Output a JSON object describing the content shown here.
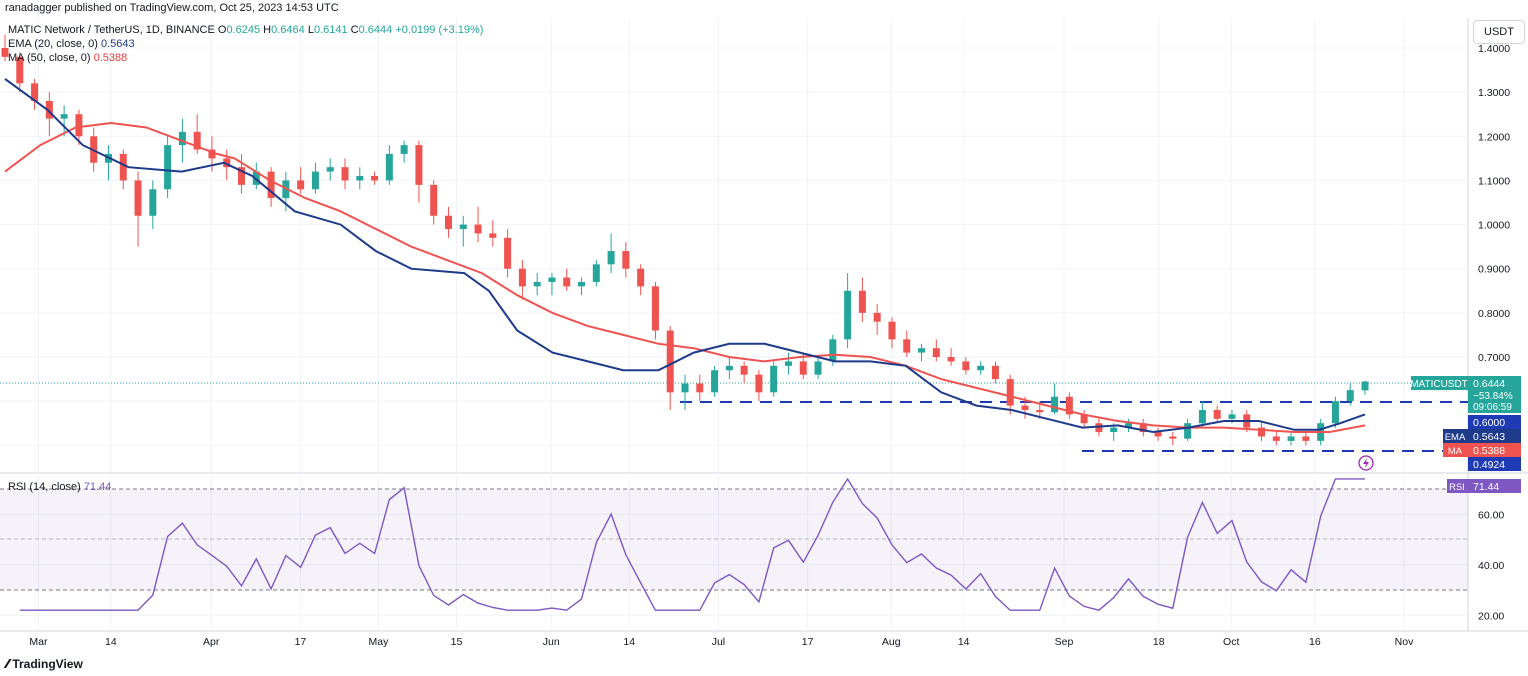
{
  "header": {
    "publisher": "ranadagger published on TradingView.com, Oct 25, 2023 14:53 UTC",
    "symbol_title": "MATIC Network / TetherUS, 1D, BINANCE",
    "ohlc": {
      "o_label": "O",
      "o": "0.6245",
      "h_label": "H",
      "h": "0.6464",
      "l_label": "L",
      "l": "0.6141",
      "c_label": "C",
      "c": "0.6444",
      "change": "+0.0199 (+3.19%)"
    },
    "ema_label": "EMA (20, close, 0)",
    "ema_value": "0.5643",
    "ma_label": "MA (50, close, 0)",
    "ma_value": "0.5388",
    "rsi_label": "RSI (14, close)",
    "rsi_value": "71.44"
  },
  "price_axis": {
    "unit": "USDT",
    "ticks": [
      "1.4000",
      "1.3000",
      "1.2000",
      "1.1000",
      "1.0000",
      "0.9000",
      "0.8000",
      "0.7000"
    ]
  },
  "rsi_axis": {
    "ticks": [
      "60.00",
      "40.00",
      "20.00"
    ]
  },
  "badges": {
    "symbol": "MATICUSDT",
    "price": "0.6444",
    "pct": "−53.84%",
    "countdown": "09:06:59",
    "level_top": "0.6000",
    "ema_tag": "EMA",
    "ema": "0.5643",
    "ma_tag": "MA",
    "ma": "0.5388",
    "level_bottom": "0.4924",
    "rsi_tag": "RSI",
    "rsi": "71.44"
  },
  "time_axis": [
    "Mar",
    "14",
    "Apr",
    "17",
    "May",
    "15",
    "Jun",
    "14",
    "Jul",
    "17",
    "Aug",
    "14",
    "Sep",
    "18",
    "Oct",
    "16",
    "Nov"
  ],
  "footer": {
    "brand": "TradingView"
  },
  "colors": {
    "up": "#26a69a",
    "down": "#ef5350",
    "ema": "#1e3a8a",
    "ma": "#ef5350",
    "rsi": "#7e57c2",
    "level": "#1e3ab4"
  },
  "chart_data": {
    "type": "candlestick",
    "x_start": "2023-02-23",
    "x_end": "2023-10-25",
    "support_resistance": [
      0.6,
      0.4924
    ],
    "price_range": [
      0.45,
      1.44
    ],
    "ema20": [
      [
        0,
        1.33
      ],
      [
        12,
        1.26
      ],
      [
        22,
        1.18
      ],
      [
        35,
        1.13
      ],
      [
        50,
        1.12
      ],
      [
        62,
        1.14
      ],
      [
        70,
        1.11
      ],
      [
        82,
        1.03
      ],
      [
        95,
        1.0
      ],
      [
        105,
        0.94
      ],
      [
        115,
        0.9
      ],
      [
        130,
        0.89
      ],
      [
        137,
        0.85
      ],
      [
        145,
        0.76
      ],
      [
        155,
        0.71
      ],
      [
        165,
        0.69
      ],
      [
        175,
        0.67
      ],
      [
        185,
        0.67
      ],
      [
        195,
        0.71
      ],
      [
        205,
        0.73
      ],
      [
        215,
        0.73
      ],
      [
        225,
        0.71
      ],
      [
        235,
        0.69
      ],
      [
        245,
        0.69
      ],
      [
        255,
        0.68
      ],
      [
        265,
        0.62
      ],
      [
        275,
        0.59
      ],
      [
        285,
        0.58
      ],
      [
        295,
        0.56
      ],
      [
        305,
        0.54
      ],
      [
        315,
        0.545
      ],
      [
        325,
        0.53
      ],
      [
        335,
        0.54
      ],
      [
        345,
        0.555
      ],
      [
        355,
        0.555
      ],
      [
        365,
        0.535
      ],
      [
        372,
        0.535
      ],
      [
        378,
        0.55
      ],
      [
        385,
        0.57
      ]
    ],
    "ma50": [
      [
        0,
        1.12
      ],
      [
        10,
        1.18
      ],
      [
        20,
        1.22
      ],
      [
        30,
        1.23
      ],
      [
        40,
        1.22
      ],
      [
        50,
        1.19
      ],
      [
        60,
        1.16
      ],
      [
        65,
        1.15
      ],
      [
        75,
        1.1
      ],
      [
        85,
        1.06
      ],
      [
        95,
        1.03
      ],
      [
        105,
        0.99
      ],
      [
        115,
        0.95
      ],
      [
        125,
        0.92
      ],
      [
        135,
        0.89
      ],
      [
        145,
        0.84
      ],
      [
        155,
        0.8
      ],
      [
        165,
        0.77
      ],
      [
        175,
        0.75
      ],
      [
        185,
        0.73
      ],
      [
        195,
        0.72
      ],
      [
        205,
        0.7
      ],
      [
        215,
        0.69
      ],
      [
        225,
        0.7
      ],
      [
        235,
        0.705
      ],
      [
        245,
        0.7
      ],
      [
        255,
        0.68
      ],
      [
        265,
        0.65
      ],
      [
        275,
        0.63
      ],
      [
        285,
        0.61
      ],
      [
        295,
        0.59
      ],
      [
        305,
        0.57
      ],
      [
        315,
        0.555
      ],
      [
        325,
        0.545
      ],
      [
        335,
        0.54
      ],
      [
        345,
        0.54
      ],
      [
        355,
        0.535
      ],
      [
        365,
        0.53
      ],
      [
        375,
        0.53
      ],
      [
        385,
        0.545
      ]
    ],
    "candles": [
      [
        1.4,
        1.43,
        1.37,
        1.38
      ],
      [
        1.38,
        1.39,
        1.3,
        1.32
      ],
      [
        1.32,
        1.33,
        1.26,
        1.28
      ],
      [
        1.28,
        1.3,
        1.2,
        1.24
      ],
      [
        1.24,
        1.27,
        1.2,
        1.25
      ],
      [
        1.25,
        1.26,
        1.18,
        1.2
      ],
      [
        1.2,
        1.22,
        1.12,
        1.14
      ],
      [
        1.14,
        1.18,
        1.1,
        1.16
      ],
      [
        1.16,
        1.17,
        1.08,
        1.1
      ],
      [
        1.1,
        1.12,
        0.95,
        1.02
      ],
      [
        1.02,
        1.1,
        0.99,
        1.08
      ],
      [
        1.08,
        1.2,
        1.06,
        1.18
      ],
      [
        1.18,
        1.24,
        1.14,
        1.21
      ],
      [
        1.21,
        1.25,
        1.16,
        1.17
      ],
      [
        1.17,
        1.2,
        1.12,
        1.15
      ],
      [
        1.15,
        1.17,
        1.1,
        1.13
      ],
      [
        1.13,
        1.16,
        1.07,
        1.09
      ],
      [
        1.09,
        1.14,
        1.08,
        1.12
      ],
      [
        1.12,
        1.13,
        1.04,
        1.06
      ],
      [
        1.06,
        1.12,
        1.03,
        1.1
      ],
      [
        1.1,
        1.13,
        1.07,
        1.08
      ],
      [
        1.08,
        1.14,
        1.07,
        1.12
      ],
      [
        1.12,
        1.15,
        1.1,
        1.13
      ],
      [
        1.13,
        1.15,
        1.08,
        1.1
      ],
      [
        1.1,
        1.13,
        1.08,
        1.11
      ],
      [
        1.11,
        1.12,
        1.09,
        1.1
      ],
      [
        1.1,
        1.18,
        1.09,
        1.16
      ],
      [
        1.16,
        1.19,
        1.14,
        1.18
      ],
      [
        1.18,
        1.19,
        1.05,
        1.09
      ],
      [
        1.09,
        1.1,
        1.0,
        1.02
      ],
      [
        1.02,
        1.04,
        0.97,
        0.99
      ],
      [
        0.99,
        1.02,
        0.95,
        1.0
      ],
      [
        1.0,
        1.04,
        0.96,
        0.98
      ],
      [
        0.98,
        1.01,
        0.95,
        0.97
      ],
      [
        0.97,
        0.99,
        0.88,
        0.9
      ],
      [
        0.9,
        0.92,
        0.83,
        0.86
      ],
      [
        0.86,
        0.89,
        0.84,
        0.87
      ],
      [
        0.87,
        0.89,
        0.84,
        0.88
      ],
      [
        0.88,
        0.9,
        0.85,
        0.86
      ],
      [
        0.86,
        0.88,
        0.84,
        0.87
      ],
      [
        0.87,
        0.92,
        0.86,
        0.91
      ],
      [
        0.91,
        0.98,
        0.89,
        0.94
      ],
      [
        0.94,
        0.96,
        0.88,
        0.9
      ],
      [
        0.9,
        0.91,
        0.84,
        0.86
      ],
      [
        0.86,
        0.87,
        0.74,
        0.76
      ],
      [
        0.76,
        0.77,
        0.58,
        0.62
      ],
      [
        0.62,
        0.66,
        0.58,
        0.64
      ],
      [
        0.64,
        0.66,
        0.6,
        0.62
      ],
      [
        0.62,
        0.68,
        0.61,
        0.67
      ],
      [
        0.67,
        0.7,
        0.65,
        0.68
      ],
      [
        0.68,
        0.69,
        0.64,
        0.66
      ],
      [
        0.66,
        0.67,
        0.6,
        0.62
      ],
      [
        0.62,
        0.69,
        0.61,
        0.68
      ],
      [
        0.68,
        0.71,
        0.66,
        0.69
      ],
      [
        0.69,
        0.71,
        0.65,
        0.66
      ],
      [
        0.66,
        0.7,
        0.65,
        0.69
      ],
      [
        0.69,
        0.75,
        0.68,
        0.74
      ],
      [
        0.74,
        0.89,
        0.72,
        0.85
      ],
      [
        0.85,
        0.88,
        0.78,
        0.8
      ],
      [
        0.8,
        0.82,
        0.75,
        0.78
      ],
      [
        0.78,
        0.79,
        0.72,
        0.74
      ],
      [
        0.74,
        0.76,
        0.7,
        0.71
      ],
      [
        0.71,
        0.73,
        0.69,
        0.72
      ],
      [
        0.72,
        0.74,
        0.69,
        0.7
      ],
      [
        0.7,
        0.72,
        0.68,
        0.69
      ],
      [
        0.69,
        0.7,
        0.66,
        0.67
      ],
      [
        0.67,
        0.69,
        0.66,
        0.68
      ],
      [
        0.68,
        0.69,
        0.64,
        0.65
      ],
      [
        0.65,
        0.66,
        0.57,
        0.59
      ],
      [
        0.59,
        0.61,
        0.56,
        0.58
      ],
      [
        0.58,
        0.6,
        0.56,
        0.575
      ],
      [
        0.575,
        0.64,
        0.57,
        0.61
      ],
      [
        0.61,
        0.62,
        0.56,
        0.57
      ],
      [
        0.57,
        0.58,
        0.54,
        0.55
      ],
      [
        0.55,
        0.56,
        0.52,
        0.53
      ],
      [
        0.53,
        0.55,
        0.51,
        0.54
      ],
      [
        0.54,
        0.56,
        0.53,
        0.55
      ],
      [
        0.55,
        0.56,
        0.52,
        0.53
      ],
      [
        0.53,
        0.54,
        0.51,
        0.52
      ],
      [
        0.52,
        0.53,
        0.5,
        0.515
      ],
      [
        0.515,
        0.56,
        0.51,
        0.55
      ],
      [
        0.55,
        0.6,
        0.54,
        0.58
      ],
      [
        0.58,
        0.59,
        0.55,
        0.56
      ],
      [
        0.56,
        0.58,
        0.55,
        0.57
      ],
      [
        0.57,
        0.58,
        0.53,
        0.54
      ],
      [
        0.54,
        0.55,
        0.51,
        0.52
      ],
      [
        0.52,
        0.53,
        0.5,
        0.51
      ],
      [
        0.51,
        0.53,
        0.5,
        0.52
      ],
      [
        0.52,
        0.53,
        0.5,
        0.51
      ],
      [
        0.51,
        0.56,
        0.5,
        0.55
      ],
      [
        0.55,
        0.61,
        0.54,
        0.6
      ],
      [
        0.6,
        0.64,
        0.59,
        0.625
      ],
      [
        0.6245,
        0.6464,
        0.6141,
        0.6444
      ]
    ]
  }
}
